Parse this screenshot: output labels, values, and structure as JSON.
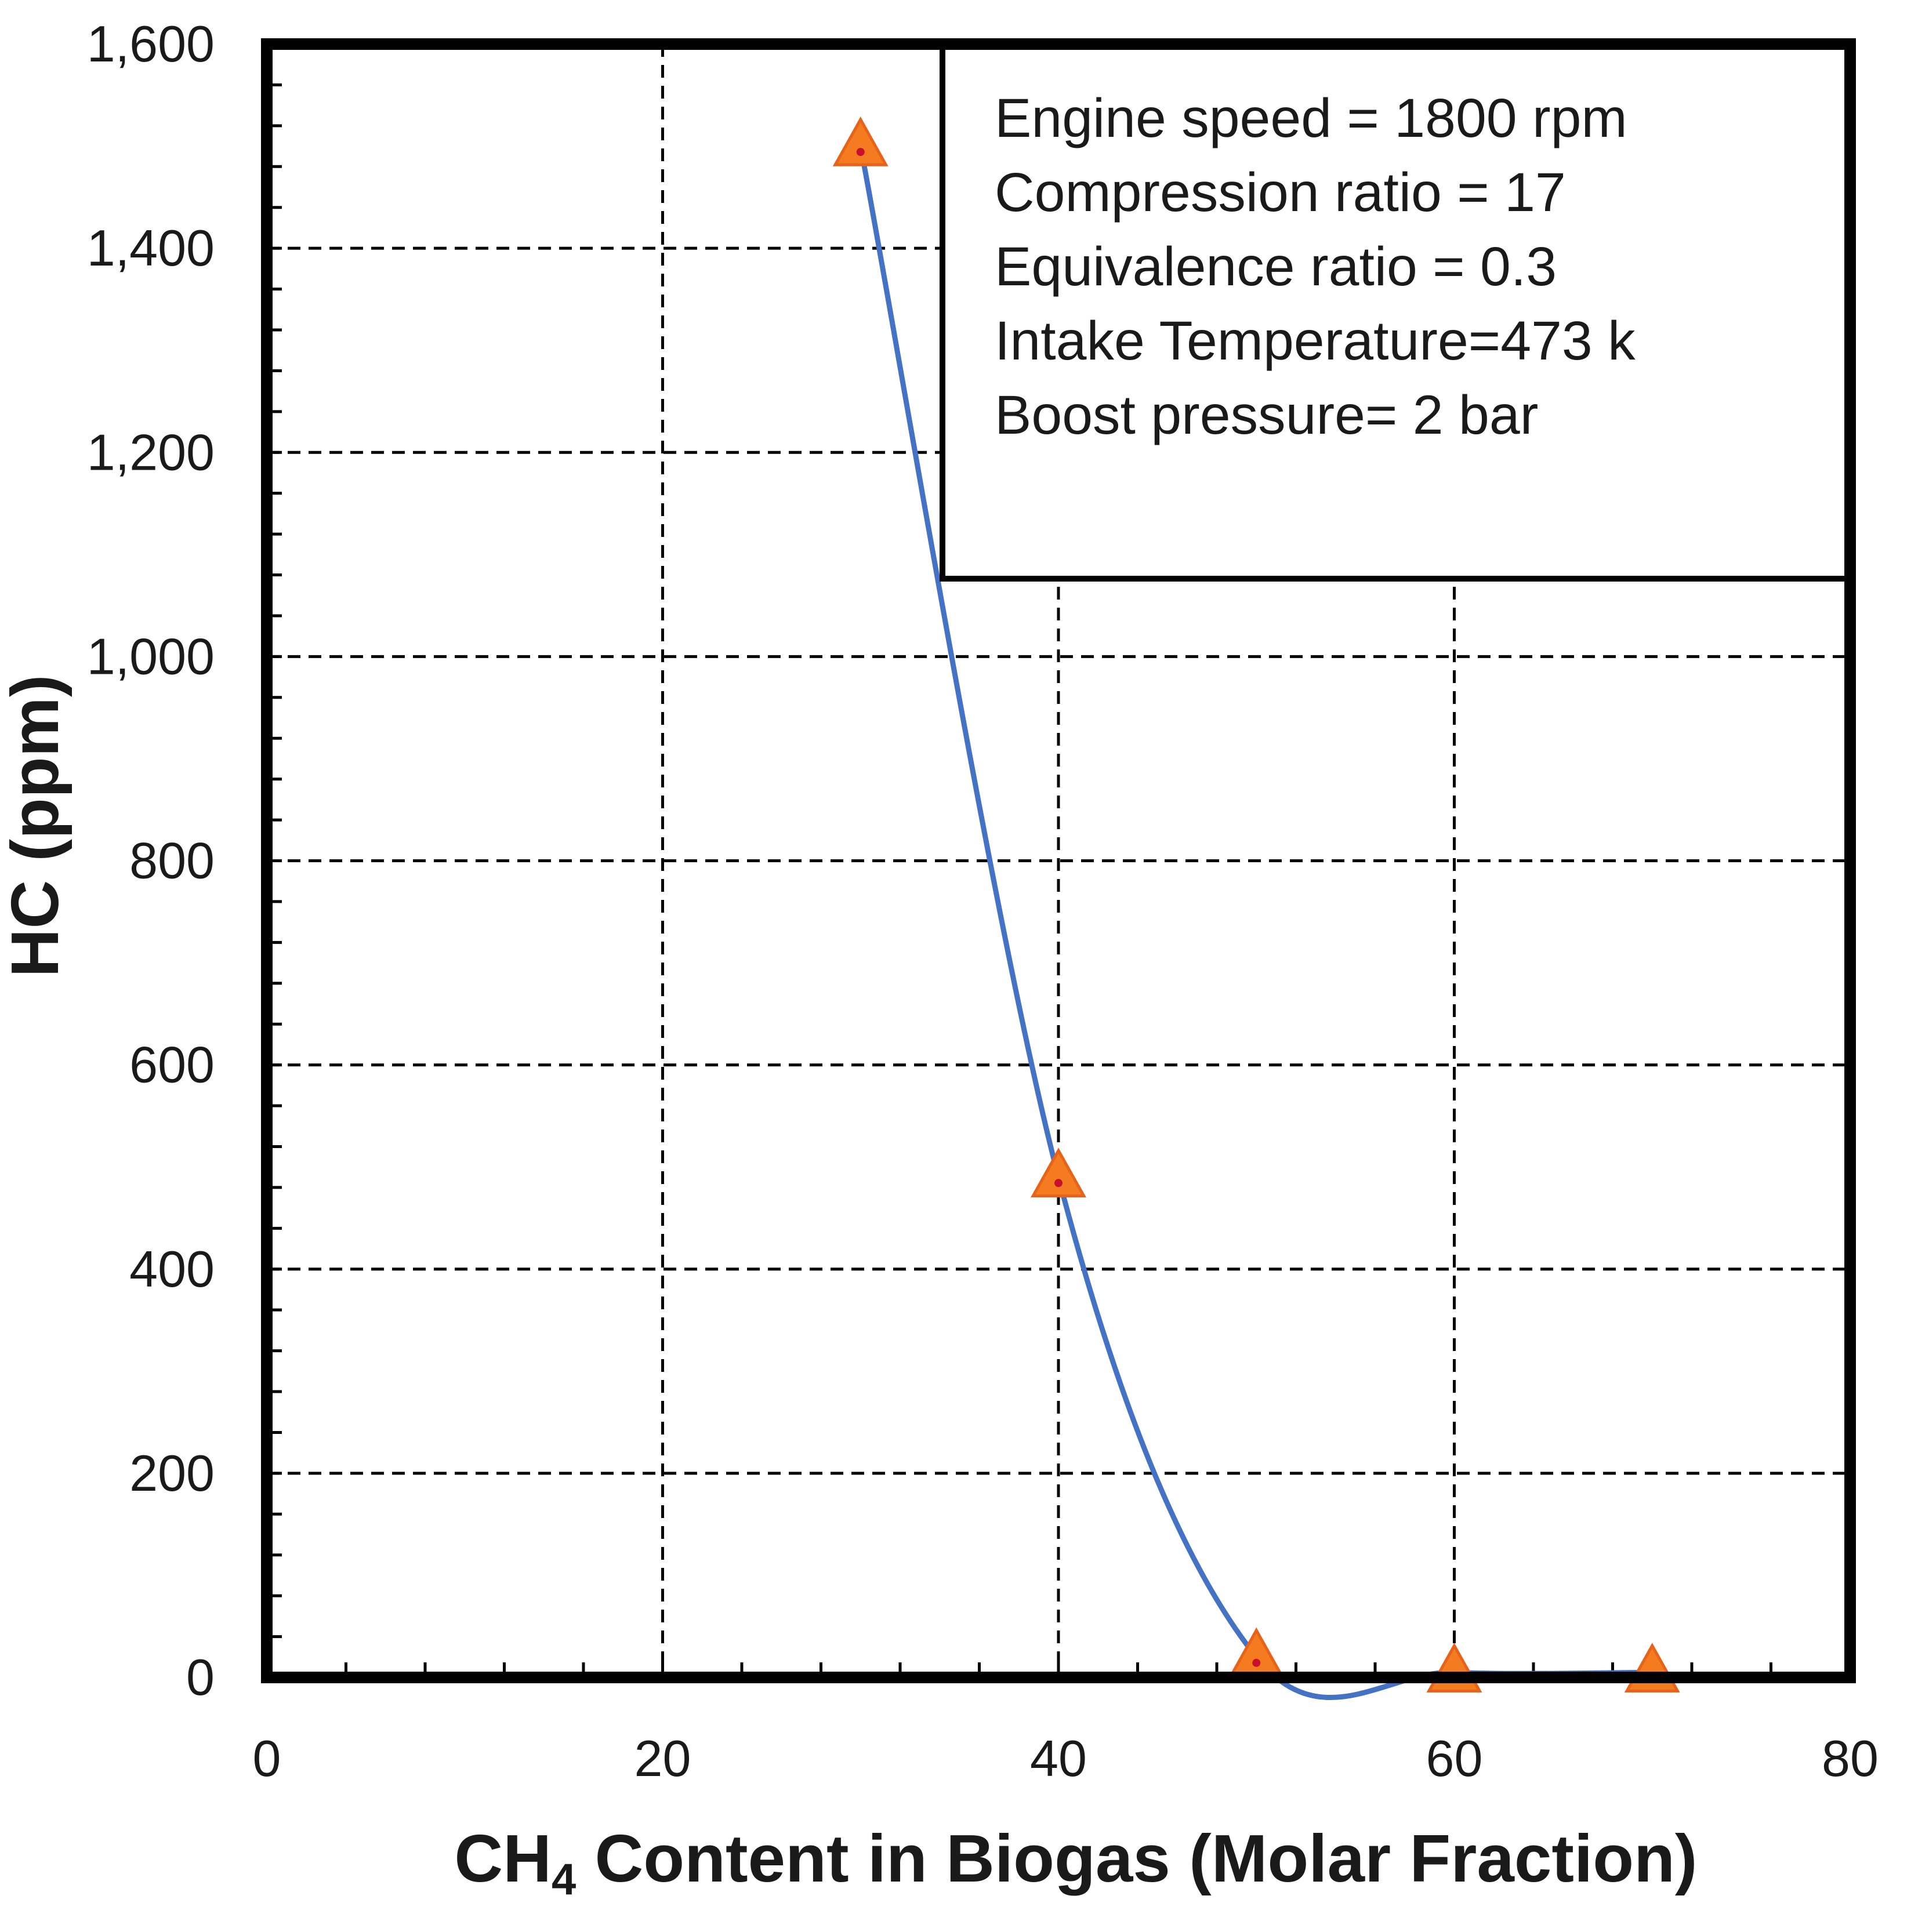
{
  "chart_data": {
    "type": "line",
    "title": "",
    "xlabel": {
      "prefix": "CH",
      "subscript": "4",
      "suffix": " Content in Biogas (Molar Fraction)"
    },
    "ylabel": "HC (ppm)",
    "xlim": [
      0,
      80
    ],
    "ylim": [
      0,
      1600
    ],
    "x_ticks": [
      0,
      20,
      40,
      60,
      80
    ],
    "y_ticks": [
      0,
      200,
      400,
      600,
      800,
      1000,
      1200,
      1400,
      1600
    ],
    "x_tick_labels": [
      "0",
      "20",
      "40",
      "60",
      "80"
    ],
    "y_tick_labels": [
      "0",
      "200",
      "400",
      "600",
      "800",
      "1,000",
      "1,200",
      "1,400",
      "1,600"
    ],
    "grid": true,
    "series": [
      {
        "x": [
          30,
          40,
          50,
          60,
          70
        ],
        "y": [
          1500,
          490,
          20,
          5,
          5
        ],
        "line_color": "#4472C4",
        "marker": "triangle",
        "marker_color": "#F47B20"
      }
    ],
    "annotation_lines": [
      "Engine speed = 1800 rpm",
      "Compression ratio = 17",
      "Equivalence ratio = 0.3",
      "Intake Temperature=473 k",
      "Boost pressure= 2 bar"
    ]
  }
}
